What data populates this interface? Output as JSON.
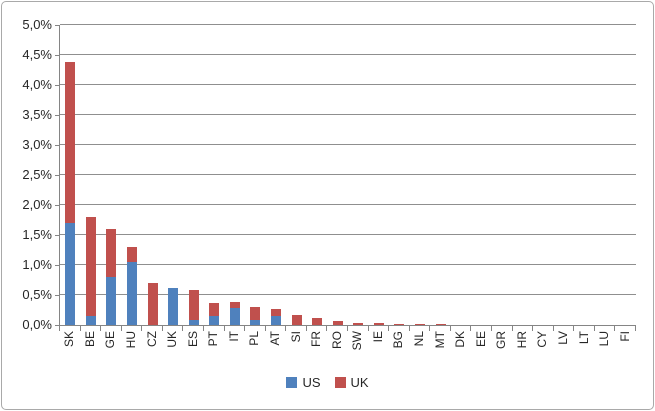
{
  "chart_data": {
    "type": "bar",
    "stacked": true,
    "title": "",
    "xlabel": "",
    "ylabel": "",
    "categories": [
      "SK",
      "BE",
      "GE",
      "HU",
      "CZ",
      "UK",
      "ES",
      "PT",
      "IT",
      "PL",
      "AT",
      "SI",
      "FR",
      "RO",
      "SW",
      "IE",
      "BG",
      "NL",
      "MT",
      "DK",
      "EE",
      "GR",
      "HR",
      "CY",
      "LV",
      "LT",
      "LU",
      "FI"
    ],
    "series": [
      {
        "name": "US",
        "color": "#4F81BD",
        "values": [
          1.7,
          0.15,
          0.8,
          1.05,
          0.0,
          0.62,
          0.08,
          0.15,
          0.28,
          0.08,
          0.15,
          0.0,
          0.0,
          0.0,
          0.0,
          0.0,
          0.0,
          0.0,
          0.0,
          0,
          0,
          0,
          0,
          0,
          0,
          0,
          0,
          0
        ]
      },
      {
        "name": "UK",
        "color": "#C0504D",
        "values": [
          2.68,
          1.65,
          0.8,
          0.25,
          0.7,
          0.0,
          0.5,
          0.22,
          0.1,
          0.21,
          0.11,
          0.17,
          0.12,
          0.07,
          0.04,
          0.03,
          0.02,
          0.02,
          0.02,
          0,
          0,
          0,
          0,
          0,
          0,
          0,
          0,
          0
        ]
      }
    ],
    "ylim": [
      0,
      5
    ],
    "ytick_step": 0.5,
    "ytick_labels": [
      "0,0%",
      "0,5%",
      "1,0%",
      "1,5%",
      "2,0%",
      "2,5%",
      "3,0%",
      "3,5%",
      "4,0%",
      "4,5%",
      "5,0%"
    ],
    "grid": true,
    "legend_position": "bottom-center",
    "x_label_rotation_deg": 90,
    "axis_color": "#858585",
    "gridline_color": "#8f8f8f",
    "border_color": "#a9a9a9"
  }
}
